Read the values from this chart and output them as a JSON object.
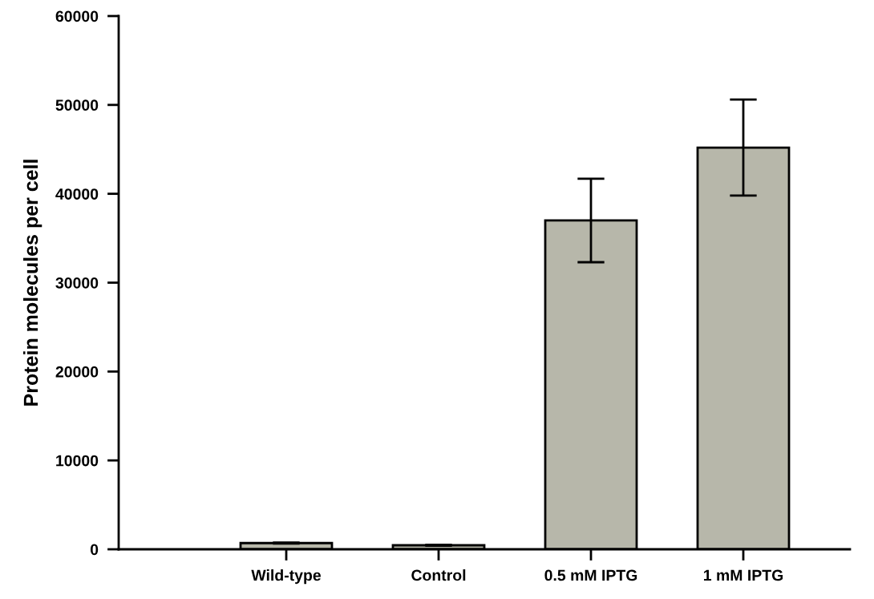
{
  "chart_data": {
    "type": "bar",
    "ylabel": "Protein molecules per cell",
    "categories": [
      "Wild-type",
      "Control",
      "0.5 mM IPTG",
      "1 mM IPTG"
    ],
    "values": [
      700,
      450,
      37000,
      45200
    ],
    "errors": [
      50,
      50,
      4700,
      5400
    ],
    "color": "#b7b7aa",
    "ylim": [
      0,
      60000
    ],
    "yticks": [
      0,
      10000,
      20000,
      30000,
      40000,
      50000,
      60000
    ],
    "grid": false,
    "legend": false
  }
}
